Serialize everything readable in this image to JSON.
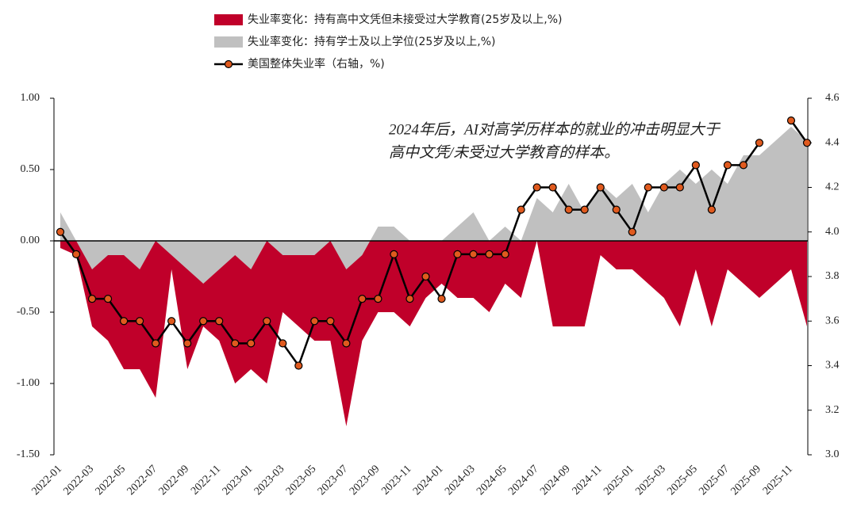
{
  "chart_data": {
    "type": "combo",
    "annotation": [
      "2024年后，AI对高学历样本的就业的冲击明显大于",
      "高中文凭/未受过大学教育的样本。"
    ],
    "categories": [
      "2022-01",
      null,
      "2022-03",
      null,
      "2022-05",
      null,
      "2022-07",
      null,
      "2022-09",
      null,
      "2022-11",
      null,
      "2023-01",
      null,
      "2023-03",
      null,
      "2023-05",
      null,
      "2023-07",
      null,
      "2023-09",
      null,
      "2023-11",
      null,
      "2024-01",
      null,
      "2024-03",
      null,
      "2024-05",
      null,
      "2024-07",
      null,
      "2024-09",
      null,
      "2024-11",
      null,
      "2025-01",
      null,
      "2025-03",
      null,
      "2025-05",
      null,
      "2025-07",
      null,
      "2025-09",
      null,
      "2025-11",
      null
    ],
    "series": [
      {
        "name": "失业率变化：持有高中文凭但未接受过大学教育(25岁及以上,%)",
        "type": "area",
        "color": "#c0002a",
        "values": [
          -0.05,
          -0.1,
          -0.6,
          -0.7,
          -0.9,
          -0.9,
          -1.1,
          -0.2,
          -0.9,
          -0.6,
          -0.7,
          -1.0,
          -0.9,
          -1.0,
          -0.5,
          -0.6,
          -0.7,
          -0.7,
          -1.3,
          -0.7,
          -0.5,
          -0.5,
          -0.6,
          -0.4,
          -0.3,
          -0.4,
          -0.4,
          -0.5,
          -0.3,
          -0.4,
          0.0,
          -0.6,
          -0.6,
          -0.6,
          -0.1,
          -0.2,
          -0.2,
          -0.3,
          -0.4,
          -0.6,
          -0.2,
          -0.6,
          -0.2,
          -0.3,
          -0.4,
          -0.3,
          -0.2,
          -0.6
        ]
      },
      {
        "name": "失业率变化：持有学士及以上学位(25岁及以上,%)",
        "type": "area",
        "color": "#c0c0c0",
        "values": [
          0.2,
          0.0,
          -0.2,
          -0.1,
          -0.1,
          -0.2,
          0.0,
          -0.1,
          -0.2,
          -0.3,
          -0.2,
          -0.1,
          -0.2,
          0.0,
          -0.1,
          -0.1,
          -0.1,
          0.0,
          -0.2,
          -0.1,
          0.1,
          0.1,
          0.0,
          0.0,
          0.0,
          0.1,
          0.2,
          0.0,
          0.1,
          0.0,
          0.3,
          0.2,
          0.4,
          0.2,
          0.4,
          0.3,
          0.4,
          0.2,
          0.4,
          0.5,
          0.4,
          0.5,
          0.4,
          0.6,
          0.6,
          0.7,
          0.8,
          0.7
        ]
      },
      {
        "name": "美国整体失业率（右轴，%)",
        "type": "line",
        "axis": "y2",
        "color": "#000000",
        "marker_color": "#e05a1e",
        "values": [
          4.0,
          3.9,
          3.7,
          3.7,
          3.6,
          3.6,
          3.5,
          3.6,
          3.5,
          3.6,
          3.6,
          3.5,
          3.5,
          3.6,
          3.5,
          3.4,
          3.6,
          3.6,
          3.5,
          3.7,
          3.7,
          3.9,
          3.7,
          3.8,
          3.7,
          3.9,
          3.9,
          3.9,
          3.9,
          4.1,
          4.2,
          4.2,
          4.1,
          4.1,
          4.2,
          4.1,
          4.0,
          4.2,
          4.2,
          4.2,
          4.3,
          4.1,
          4.3,
          4.3,
          4.4,
          null,
          4.5,
          4.4
        ]
      }
    ],
    "ylim": [
      -1.5,
      1.0
    ],
    "yticks": [
      {
        "value": -1.5,
        "label": "-1.50"
      },
      {
        "value": -1.0,
        "label": "-1.00"
      },
      {
        "value": -0.5,
        "label": "-0.50"
      },
      {
        "value": 0,
        "label": "0.00"
      },
      {
        "value": 0.5,
        "label": "0.50"
      },
      {
        "value": 1.0,
        "label": "1.00"
      }
    ],
    "y2lim": [
      3.0,
      4.6
    ],
    "y2ticks": [
      {
        "value": 3.0,
        "label": "3.0"
      },
      3.2,
      3.4,
      3.6,
      3.8,
      {
        "value": 4.0,
        "label": "4.0"
      },
      4.2,
      4.4,
      4.6
    ]
  }
}
